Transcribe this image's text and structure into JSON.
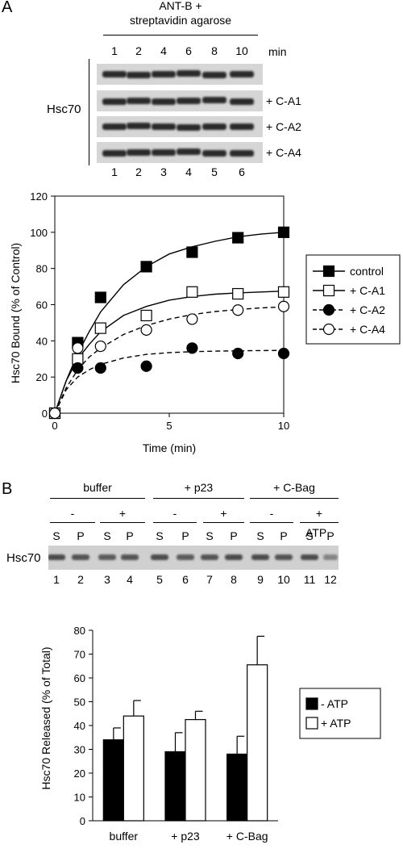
{
  "panel_a": {
    "letter": "A",
    "header_line1": "ANT-B +",
    "header_line2": "streptavidin agarose",
    "time_labels": [
      "1",
      "2",
      "4",
      "6",
      "8",
      "10"
    ],
    "time_unit": "min",
    "blot_label": "Hsc70",
    "row_labels": [
      "",
      "+ C-A1",
      "+ C-A2",
      "+ C-A4"
    ],
    "lane_numbers": [
      "1",
      "2",
      "3",
      "4",
      "5",
      "6"
    ]
  },
  "panel_b": {
    "letter": "B",
    "groups": [
      "buffer",
      "+ p23",
      "+ C-Bag"
    ],
    "atp_signs": [
      "-",
      "+",
      "-",
      "+",
      "-",
      "+"
    ],
    "atp_label": "ATP",
    "sp_labels": [
      "S",
      "P",
      "S",
      "P",
      "S",
      "P",
      "S",
      "P",
      "S",
      "P",
      "S",
      "P"
    ],
    "blot_label": "Hsc70",
    "lane_numbers": [
      "1",
      "2",
      "3",
      "4",
      "5",
      "6",
      "7",
      "8",
      "9",
      "10",
      "11",
      "12"
    ]
  },
  "chart_data": [
    {
      "type": "line",
      "xlabel": "Time (min)",
      "ylabel": "Hsc70 Bound (% of Control)",
      "xlim": [
        0,
        10
      ],
      "ylim": [
        0,
        120
      ],
      "xticks": [
        0,
        5,
        10
      ],
      "yticks": [
        0,
        20,
        40,
        60,
        80,
        100,
        120
      ],
      "legend_position": "right",
      "series": [
        {
          "name": "control",
          "marker": "filled-square",
          "line": "solid",
          "x": [
            0,
            1,
            2,
            4,
            6,
            8,
            10
          ],
          "y": [
            0,
            39,
            64,
            81,
            89,
            97,
            100
          ],
          "fit": [
            [
              0,
              0
            ],
            [
              0.5,
              18
            ],
            [
              1,
              33
            ],
            [
              1.5,
              45
            ],
            [
              2,
              56
            ],
            [
              3,
              71
            ],
            [
              4,
              81
            ],
            [
              5,
              88
            ],
            [
              6,
              92
            ],
            [
              7,
              95
            ],
            [
              8,
              97.5
            ],
            [
              9,
              99
            ],
            [
              10,
              100
            ]
          ]
        },
        {
          "name": "+ C-A1",
          "marker": "open-square",
          "line": "solid",
          "x": [
            0,
            1,
            2,
            4,
            6,
            8,
            10
          ],
          "y": [
            0,
            30,
            47,
            54,
            67,
            66,
            67
          ],
          "fit": [
            [
              0,
              0
            ],
            [
              0.5,
              18
            ],
            [
              1,
              30
            ],
            [
              1.5,
              38
            ],
            [
              2,
              45
            ],
            [
              3,
              54
            ],
            [
              4,
              59
            ],
            [
              5,
              62.5
            ],
            [
              6,
              64.5
            ],
            [
              7,
              65.8
            ],
            [
              8,
              66.5
            ],
            [
              9,
              67
            ],
            [
              10,
              67.5
            ]
          ]
        },
        {
          "name": "+ C-A2",
          "marker": "filled-circle",
          "line": "dashed",
          "x": [
            0,
            1,
            2,
            4,
            6,
            8,
            10
          ],
          "y": [
            0,
            25,
            25,
            26,
            36,
            33,
            33
          ],
          "fit": [
            [
              0,
              0
            ],
            [
              0.5,
              13
            ],
            [
              1,
              20
            ],
            [
              1.5,
              24
            ],
            [
              2,
              27
            ],
            [
              3,
              30.5
            ],
            [
              4,
              32.5
            ],
            [
              5,
              33.5
            ],
            [
              6,
              34
            ],
            [
              7,
              34.3
            ],
            [
              8,
              34.5
            ],
            [
              9,
              34.6
            ],
            [
              10,
              34.7
            ]
          ]
        },
        {
          "name": "+ C-A4",
          "marker": "open-circle",
          "line": "dashed",
          "x": [
            0,
            1,
            2,
            4,
            6,
            8,
            10
          ],
          "y": [
            0,
            36,
            37,
            46,
            52,
            57,
            59
          ],
          "fit": [
            [
              0,
              0
            ],
            [
              0.5,
              14
            ],
            [
              1,
              24
            ],
            [
              1.5,
              31
            ],
            [
              2,
              36
            ],
            [
              3,
              43.5
            ],
            [
              4,
              48.5
            ],
            [
              5,
              52
            ],
            [
              6,
              54.5
            ],
            [
              7,
              56.2
            ],
            [
              8,
              57.3
            ],
            [
              9,
              58.2
            ],
            [
              10,
              58.8
            ]
          ]
        }
      ]
    },
    {
      "type": "bar",
      "ylabel": "Hsc70 Released (% of Total)",
      "categories": [
        "buffer",
        "+ p23",
        "+ C-Bag"
      ],
      "ylim": [
        0,
        80
      ],
      "yticks": [
        0,
        10,
        20,
        30,
        40,
        50,
        60,
        70,
        80
      ],
      "legend_position": "right",
      "series": [
        {
          "name": "- ATP",
          "color": "#000000",
          "values": [
            34,
            29,
            28
          ],
          "errors": [
            5,
            8,
            7.5
          ]
        },
        {
          "name": "+ ATP",
          "color": "#ffffff",
          "values": [
            44,
            42.5,
            65.5
          ],
          "errors": [
            6.5,
            3.5,
            12
          ]
        }
      ]
    }
  ]
}
